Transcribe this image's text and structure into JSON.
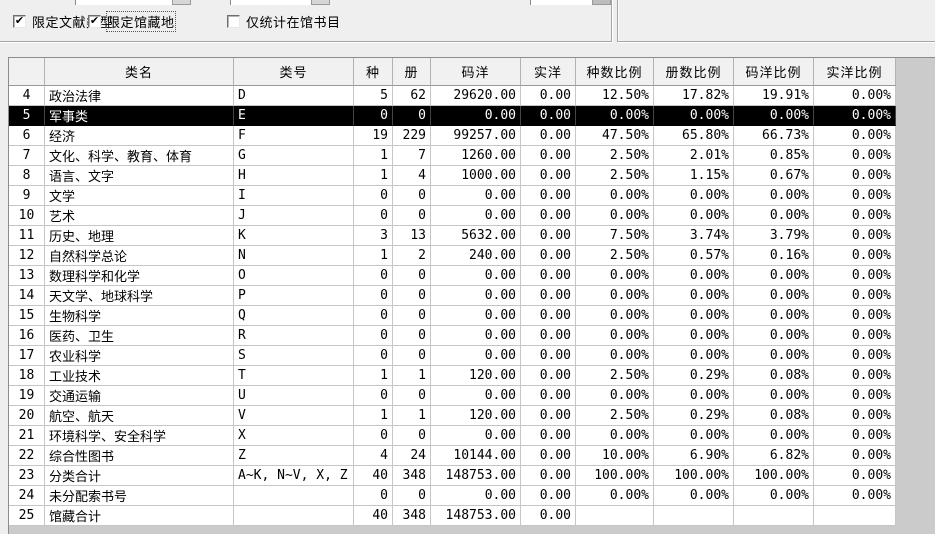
{
  "toolbar": {
    "checkboxes": [
      {
        "label": "限定文献类型",
        "checked": true,
        "focused": false
      },
      {
        "label": "限定馆藏地",
        "checked": true,
        "focused": true
      },
      {
        "label": "仅统计在馆书目",
        "checked": false,
        "focused": false
      }
    ],
    "check_glyph": "✔"
  },
  "table": {
    "columns": [
      "",
      "类名",
      "类号",
      "种",
      "册",
      "码洋",
      "实洋",
      "种数比例",
      "册数比例",
      "码洋比例",
      "实洋比例"
    ],
    "selected_row": "5",
    "rows": [
      [
        "4",
        "政治法律",
        "D",
        "5",
        "62",
        "29620.00",
        "0.00",
        "12.50%",
        "17.82%",
        "19.91%",
        "0.00%"
      ],
      [
        "5",
        "军事类",
        "E",
        "0",
        "0",
        "0.00",
        "0.00",
        "0.00%",
        "0.00%",
        "0.00%",
        "0.00%"
      ],
      [
        "6",
        "经济",
        "F",
        "19",
        "229",
        "99257.00",
        "0.00",
        "47.50%",
        "65.80%",
        "66.73%",
        "0.00%"
      ],
      [
        "7",
        "文化、科学、教育、体育",
        "G",
        "1",
        "7",
        "1260.00",
        "0.00",
        "2.50%",
        "2.01%",
        "0.85%",
        "0.00%"
      ],
      [
        "8",
        "语言、文字",
        "H",
        "1",
        "4",
        "1000.00",
        "0.00",
        "2.50%",
        "1.15%",
        "0.67%",
        "0.00%"
      ],
      [
        "9",
        "文学",
        "I",
        "0",
        "0",
        "0.00",
        "0.00",
        "0.00%",
        "0.00%",
        "0.00%",
        "0.00%"
      ],
      [
        "10",
        "艺术",
        "J",
        "0",
        "0",
        "0.00",
        "0.00",
        "0.00%",
        "0.00%",
        "0.00%",
        "0.00%"
      ],
      [
        "11",
        "历史、地理",
        "K",
        "3",
        "13",
        "5632.00",
        "0.00",
        "7.50%",
        "3.74%",
        "3.79%",
        "0.00%"
      ],
      [
        "12",
        "自然科学总论",
        "N",
        "1",
        "2",
        "240.00",
        "0.00",
        "2.50%",
        "0.57%",
        "0.16%",
        "0.00%"
      ],
      [
        "13",
        "数理科学和化学",
        "O",
        "0",
        "0",
        "0.00",
        "0.00",
        "0.00%",
        "0.00%",
        "0.00%",
        "0.00%"
      ],
      [
        "14",
        "天文学、地球科学",
        "P",
        "0",
        "0",
        "0.00",
        "0.00",
        "0.00%",
        "0.00%",
        "0.00%",
        "0.00%"
      ],
      [
        "15",
        "生物科学",
        "Q",
        "0",
        "0",
        "0.00",
        "0.00",
        "0.00%",
        "0.00%",
        "0.00%",
        "0.00%"
      ],
      [
        "16",
        "医药、卫生",
        "R",
        "0",
        "0",
        "0.00",
        "0.00",
        "0.00%",
        "0.00%",
        "0.00%",
        "0.00%"
      ],
      [
        "17",
        "农业科学",
        "S",
        "0",
        "0",
        "0.00",
        "0.00",
        "0.00%",
        "0.00%",
        "0.00%",
        "0.00%"
      ],
      [
        "18",
        "工业技术",
        "T",
        "1",
        "1",
        "120.00",
        "0.00",
        "2.50%",
        "0.29%",
        "0.08%",
        "0.00%"
      ],
      [
        "19",
        "交通运输",
        "U",
        "0",
        "0",
        "0.00",
        "0.00",
        "0.00%",
        "0.00%",
        "0.00%",
        "0.00%"
      ],
      [
        "20",
        "航空、航天",
        "V",
        "1",
        "1",
        "120.00",
        "0.00",
        "2.50%",
        "0.29%",
        "0.08%",
        "0.00%"
      ],
      [
        "21",
        "环境科学、安全科学",
        "X",
        "0",
        "0",
        "0.00",
        "0.00",
        "0.00%",
        "0.00%",
        "0.00%",
        "0.00%"
      ],
      [
        "22",
        "综合性图书",
        "Z",
        "4",
        "24",
        "10144.00",
        "0.00",
        "10.00%",
        "6.90%",
        "6.82%",
        "0.00%"
      ],
      [
        "23",
        "分类合计",
        "A~K, N~V, X, Z",
        "40",
        "348",
        "148753.00",
        "0.00",
        "100.00%",
        "100.00%",
        "100.00%",
        "0.00%"
      ],
      [
        "24",
        "未分配索书号",
        "",
        "0",
        "0",
        "0.00",
        "0.00",
        "0.00%",
        "0.00%",
        "0.00%",
        "0.00%"
      ],
      [
        "25",
        "馆藏合计",
        "",
        "40",
        "348",
        "148753.00",
        "0.00",
        "",
        "",
        "",
        ""
      ]
    ]
  },
  "colors": {
    "selection_bg": "#000000",
    "selection_text": "#ffffff",
    "cell_bg": "#ffffff",
    "header_bg": "#f1f1f1",
    "grid_empty_bg": "#cbcbcb",
    "window_bg": "#eeeeee"
  }
}
